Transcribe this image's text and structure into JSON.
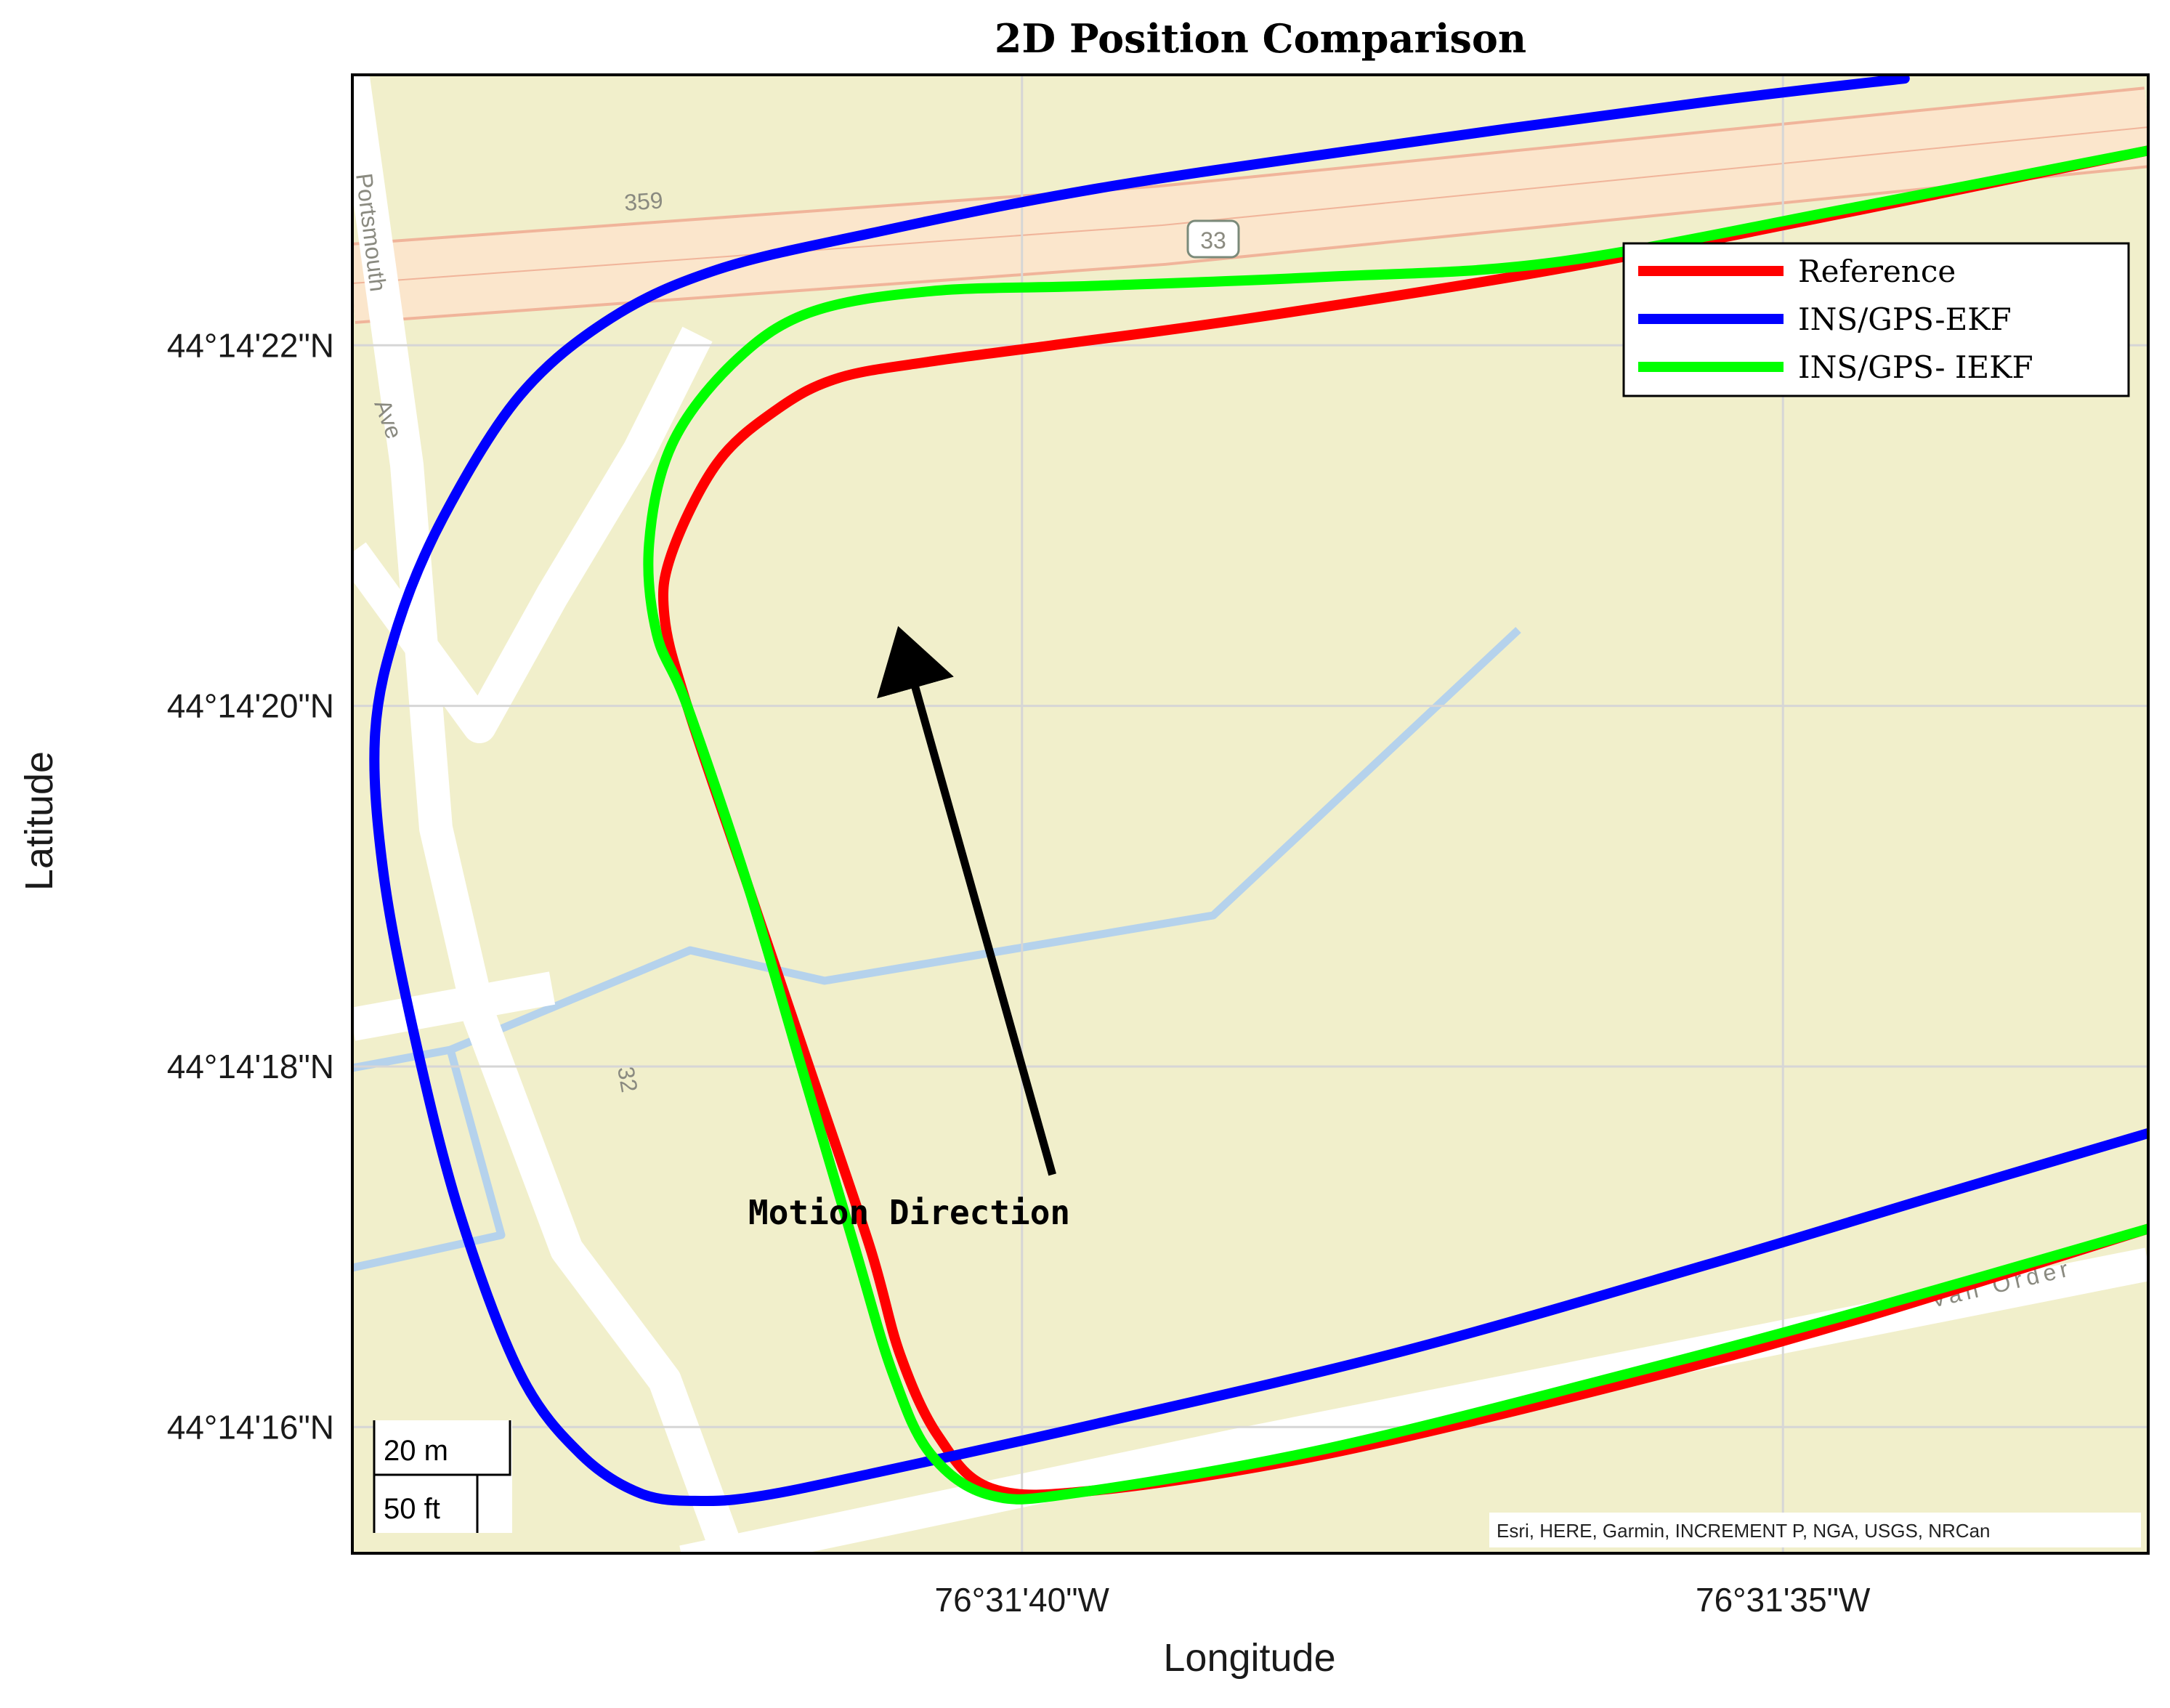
{
  "chart_data": {
    "type": "line",
    "title": "2D Position Comparison",
    "xlabel": "Longitude",
    "ylabel": "Latitude",
    "x_units": "seconds past 76°31' W",
    "y_units": "seconds past 44°14' N",
    "xlim": [
      44.4,
      32.6
    ],
    "ylim": [
      15.3,
      23.5
    ],
    "x_ticks": [
      {
        "value": 40,
        "label": "76°31'40\"W"
      },
      {
        "value": 35,
        "label": "76°31'35\"W"
      }
    ],
    "y_ticks": [
      {
        "value": 22,
        "label": "44°14'22\"N"
      },
      {
        "value": 20,
        "label": "44°14'20\"N"
      },
      {
        "value": 18,
        "label": "44°14'18\"N"
      },
      {
        "value": 16,
        "label": "44°14'16\"N"
      }
    ],
    "grid": true,
    "legend_position": "top-right",
    "series": [
      {
        "name": "Reference",
        "color": "#ff0000",
        "points": [
          [
            32.6,
            23.08
          ],
          [
            34.5,
            22.75
          ],
          [
            36.5,
            22.42
          ],
          [
            38.5,
            22.15
          ],
          [
            39.8,
            22.0
          ],
          [
            40.6,
            21.91
          ],
          [
            41.2,
            21.82
          ],
          [
            41.6,
            21.65
          ],
          [
            42.0,
            21.35
          ],
          [
            42.3,
            20.85
          ],
          [
            42.35,
            20.5
          ],
          [
            42.2,
            20.0
          ],
          [
            41.8,
            19.0
          ],
          [
            41.4,
            18.0
          ],
          [
            41.0,
            17.0
          ],
          [
            40.8,
            16.4
          ],
          [
            40.55,
            15.95
          ],
          [
            40.2,
            15.66
          ],
          [
            39.5,
            15.65
          ],
          [
            38.0,
            15.85
          ],
          [
            36.0,
            16.25
          ],
          [
            34.5,
            16.6
          ],
          [
            32.6,
            17.1
          ]
        ]
      },
      {
        "name": "INS/GPS-EKF",
        "color": "#0000ff",
        "points": [
          [
            34.2,
            23.48
          ],
          [
            35.5,
            23.35
          ],
          [
            37.5,
            23.12
          ],
          [
            39.5,
            22.87
          ],
          [
            41.0,
            22.62
          ],
          [
            42.0,
            22.42
          ],
          [
            42.7,
            22.15
          ],
          [
            43.3,
            21.72
          ],
          [
            43.8,
            21.05
          ],
          [
            44.1,
            20.45
          ],
          [
            44.25,
            19.85
          ],
          [
            44.2,
            19.1
          ],
          [
            44.0,
            18.2
          ],
          [
            43.7,
            17.2
          ],
          [
            43.3,
            16.3
          ],
          [
            42.9,
            15.85
          ],
          [
            42.5,
            15.63
          ],
          [
            42.1,
            15.59
          ],
          [
            41.7,
            15.62
          ],
          [
            41.0,
            15.74
          ],
          [
            39.5,
            16.02
          ],
          [
            37.5,
            16.42
          ],
          [
            35.5,
            16.9
          ],
          [
            34.0,
            17.28
          ],
          [
            32.6,
            17.63
          ]
        ]
      },
      {
        "name": "INS/GPS- IEKF",
        "color": "#00ff00",
        "points": [
          [
            32.6,
            23.08
          ],
          [
            34.5,
            22.77
          ],
          [
            36.5,
            22.46
          ],
          [
            38.0,
            22.38
          ],
          [
            39.5,
            22.33
          ],
          [
            40.6,
            22.3
          ],
          [
            41.4,
            22.18
          ],
          [
            41.9,
            21.9
          ],
          [
            42.3,
            21.45
          ],
          [
            42.45,
            20.9
          ],
          [
            42.4,
            20.4
          ],
          [
            42.2,
            20.0
          ],
          [
            41.8,
            19.0
          ],
          [
            41.45,
            18.0
          ],
          [
            41.1,
            17.0
          ],
          [
            40.85,
            16.3
          ],
          [
            40.6,
            15.85
          ],
          [
            40.2,
            15.62
          ],
          [
            39.6,
            15.64
          ],
          [
            38.0,
            15.88
          ],
          [
            36.0,
            16.3
          ],
          [
            34.5,
            16.64
          ],
          [
            32.6,
            17.1
          ]
        ]
      }
    ],
    "annotations": [
      {
        "text": "Motion Direction",
        "arrow_from": [
          39.8,
          17.4
        ],
        "arrow_to": [
          40.8,
          20.4
        ]
      }
    ],
    "legend": [
      {
        "label": "Reference",
        "color": "#ff0000"
      },
      {
        "label": "INS/GPS-EKF",
        "color": "#0000ff"
      },
      {
        "label": "INS/GPS- IEKF",
        "color": "#00ff00"
      }
    ]
  },
  "basemap": {
    "land_color": "#f1efcb",
    "road_color": "#ffffff",
    "highway_fill": "#fbe6cc",
    "highway_edge": "#f0b49a",
    "water_color": "#b5d2ec",
    "road_labels": [
      "359",
      "33",
      "Portsmouth",
      "Ave",
      "Van Order",
      "32"
    ],
    "scale_bar": {
      "metric": "20 m",
      "imperial": "50 ft"
    },
    "attribution": "Esri, HERE, Garmin, INCREMENT P, NGA, USGS, NRCan"
  }
}
